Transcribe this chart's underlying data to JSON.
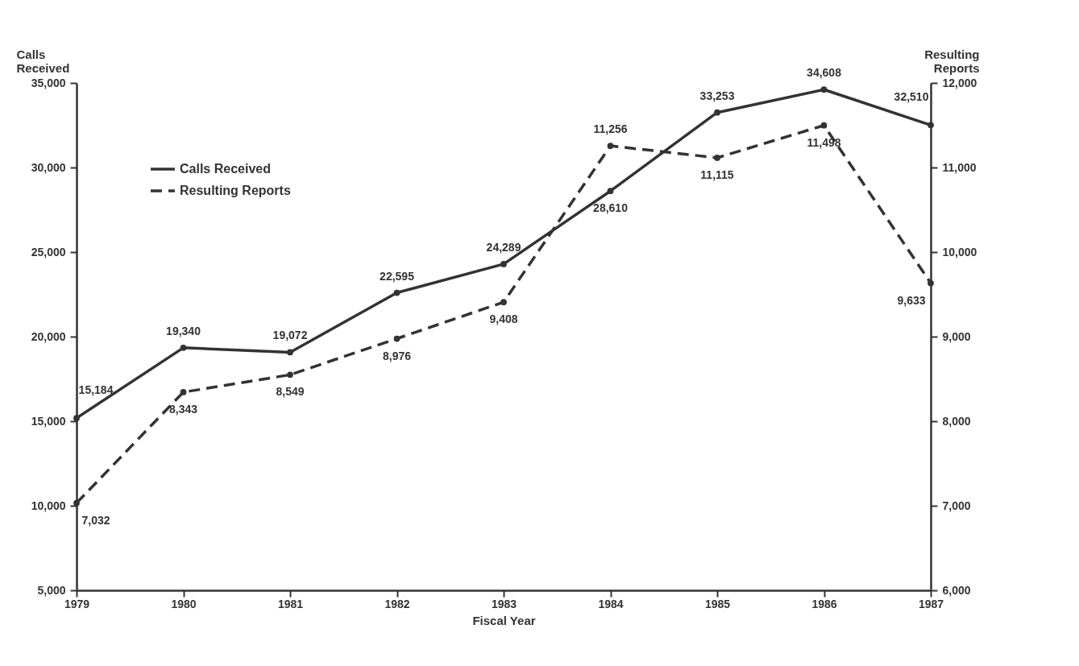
{
  "chart_data": {
    "type": "line",
    "xlabel": "Fiscal Year",
    "ylabel": "Calls Received",
    "y2label": "Resulting Reports",
    "categories": [
      "1979",
      "1980",
      "1981",
      "1982",
      "1983",
      "1984",
      "1985",
      "1986",
      "1987"
    ],
    "series": [
      {
        "name": "Calls Received",
        "color": "#333333",
        "line_style": "solid",
        "values": [
          15184,
          19340,
          19072,
          22595,
          24289,
          28610,
          33253,
          34608,
          32510
        ],
        "value_labels": [
          "15,184",
          "19,340",
          "19,072",
          "22,595",
          "24,289",
          "28,610",
          "33,253",
          "34,608",
          "32,510"
        ]
      },
      {
        "name": "Resulting Reports",
        "color": "#333333",
        "line_style": "dashed",
        "axis": "y2",
        "values": [
          7032,
          8343,
          8549,
          8976,
          9408,
          11256,
          11115,
          11498,
          9633
        ],
        "value_labels": [
          "7,032",
          "8,343",
          "8,549",
          "8,976",
          "9,408",
          "11,256",
          "11,115",
          "11,498",
          "9,633"
        ]
      }
    ],
    "ylim": [
      5000,
      35000
    ],
    "yticks": [
      {
        "value": 5000,
        "label": "5,000"
      },
      {
        "value": 10000,
        "label": "10,000"
      },
      {
        "value": 15000,
        "label": "15,000"
      },
      {
        "value": 20000,
        "label": "20,000"
      },
      {
        "value": 25000,
        "label": "25,000"
      },
      {
        "value": 30000,
        "label": "30,000"
      },
      {
        "value": 35000,
        "label": "35,000"
      }
    ],
    "y2lim": [
      6000,
      12000
    ],
    "y2ticks": [
      {
        "value": 6000,
        "label": "6,000"
      },
      {
        "value": 7000,
        "label": "7,000"
      },
      {
        "value": 8000,
        "label": "8,000"
      },
      {
        "value": 9000,
        "label": "9,000"
      },
      {
        "value": 10000,
        "label": "10,000"
      },
      {
        "value": 11000,
        "label": "11,000"
      },
      {
        "value": 12000,
        "label": "12,000"
      }
    ],
    "grid": false,
    "legend": "top left",
    "marker": "circle"
  }
}
